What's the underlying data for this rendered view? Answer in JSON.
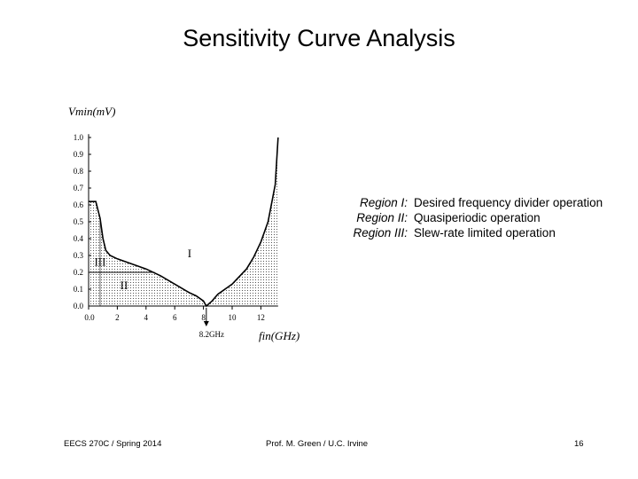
{
  "slide": {
    "title": "Sensitivity Curve Analysis",
    "footer_left": "EECS 270C / Spring 2014",
    "footer_center": "Prof. M. Green / U.C. Irvine",
    "page_number": "16"
  },
  "regions": [
    {
      "label": "Region I:",
      "description": "Desired frequency divider operation"
    },
    {
      "label": "Region II:",
      "description": "Quasiperiodic operation"
    },
    {
      "label": "Region III:",
      "description": "Slew-rate limited operation"
    }
  ],
  "chart_data": {
    "type": "line",
    "ylabel": "Vmin(mV)",
    "xlabel": "fin(GHz)",
    "xlim": [
      0,
      14
    ],
    "ylim": [
      0,
      1.0
    ],
    "x_ticks": [
      "0.0",
      "2",
      "4",
      "6",
      "8",
      "10",
      "12"
    ],
    "y_ticks": [
      "0.0",
      "0.1",
      "0.2",
      "0.3",
      "0.4",
      "0.5",
      "0.6",
      "0.7",
      "0.8",
      "0.9",
      "1.0"
    ],
    "annotation": "8.2GHz",
    "region_labels": [
      "I",
      "II",
      "III"
    ],
    "series": [
      {
        "x": [
          0.0,
          0.5,
          0.8,
          1.0,
          1.2,
          1.5,
          2.0,
          3.0,
          4.0,
          5.0,
          6.0,
          7.0,
          7.5,
          8.0,
          8.2,
          8.6,
          9.0,
          10.0,
          11.0,
          11.5,
          12.0,
          12.5,
          13.0,
          13.2
        ],
        "y": [
          0.62,
          0.62,
          0.52,
          0.4,
          0.33,
          0.3,
          0.28,
          0.25,
          0.22,
          0.18,
          0.13,
          0.08,
          0.06,
          0.03,
          0.0,
          0.03,
          0.07,
          0.13,
          0.22,
          0.29,
          0.38,
          0.5,
          0.72,
          1.0
        ]
      }
    ],
    "boundary_II_III_y": 0.2
  }
}
